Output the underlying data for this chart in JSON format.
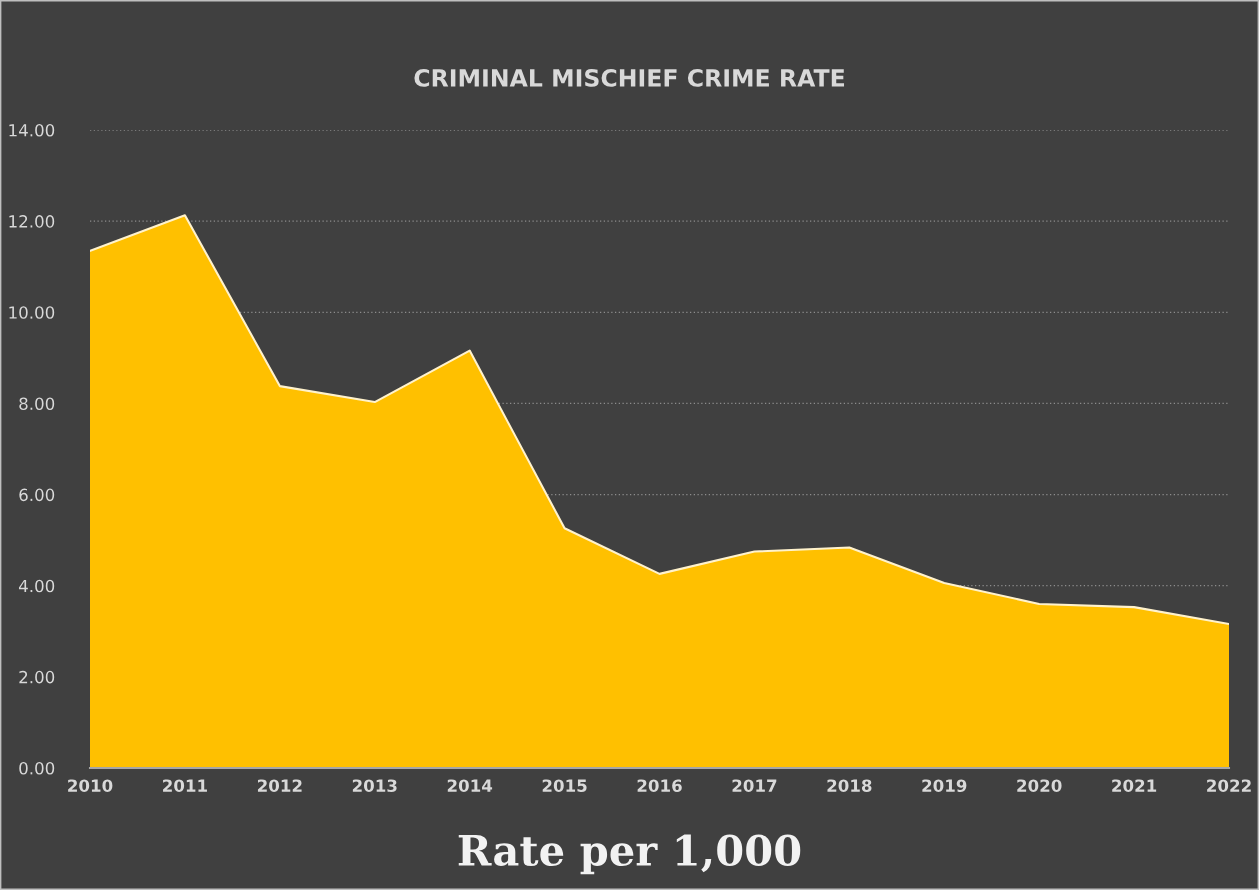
{
  "chart_data": {
    "type": "area",
    "title": "CRIMINAL MISCHIEF CRIME RATE",
    "xlabel": "Rate per 1,000",
    "categories": [
      "2010",
      "2011",
      "2012",
      "2013",
      "2014",
      "2015",
      "2016",
      "2017",
      "2018",
      "2019",
      "2020",
      "2021",
      "2022"
    ],
    "series": [
      {
        "color": "#ffc000",
        "values": [
          11.35,
          12.13,
          8.38,
          8.03,
          9.16,
          5.26,
          4.26,
          4.75,
          4.84,
          4.06,
          3.6,
          3.53,
          3.16
        ]
      }
    ],
    "ylim": [
      0,
      14
    ],
    "yticks": [
      {
        "value": 0,
        "label": "0.00"
      },
      {
        "value": 2,
        "label": "2.00"
      },
      {
        "value": 4,
        "label": "4.00"
      },
      {
        "value": 6,
        "label": "6.00"
      },
      {
        "value": 8,
        "label": "8.00"
      },
      {
        "value": 10,
        "label": "10.00"
      },
      {
        "value": 12,
        "label": "12.00"
      },
      {
        "value": 14,
        "label": "14.00"
      }
    ],
    "grid": "y"
  }
}
